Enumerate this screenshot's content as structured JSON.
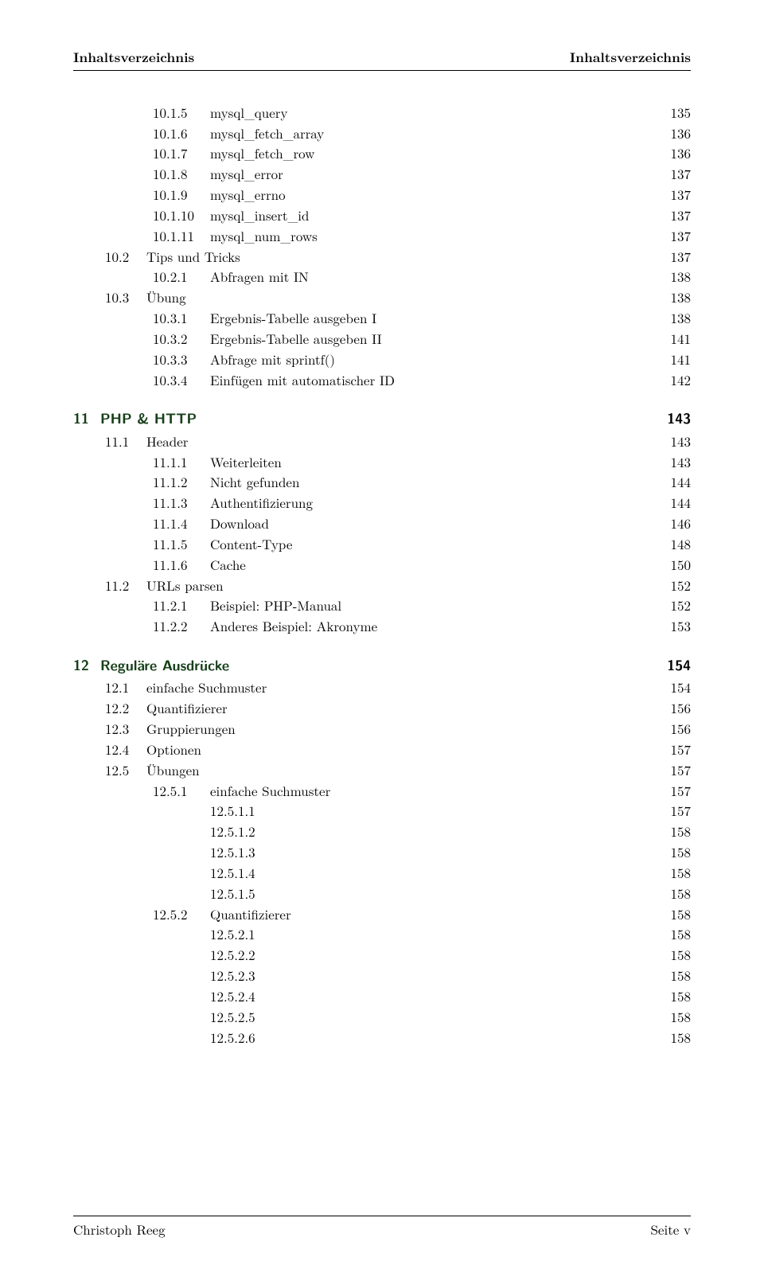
{
  "header": {
    "left": "Inhaltsverzeichnis",
    "right": "Inhaltsverzeichnis"
  },
  "footer": {
    "left": "Christoph Reeg",
    "right": "Seite v"
  },
  "colors": {
    "chapter_heading": "#17401a",
    "text": "#000000",
    "background": "#ffffff"
  },
  "typography": {
    "body_font": "Latin Modern Roman (Computer Modern)",
    "chapter_font": "Latin Modern Sans",
    "body_size_pt": 12,
    "chapter_size_pt": 13
  },
  "toc": [
    {
      "num": "10.1.5",
      "label": "mysql_query",
      "page": "135",
      "level": 3
    },
    {
      "num": "10.1.6",
      "label": "mysql_fetch_array",
      "page": "136",
      "level": 3
    },
    {
      "num": "10.1.7",
      "label": "mysql_fetch_row",
      "page": "136",
      "level": 3
    },
    {
      "num": "10.1.8",
      "label": "mysql_error",
      "page": "137",
      "level": 3
    },
    {
      "num": "10.1.9",
      "label": "mysql_errno",
      "page": "137",
      "level": 3
    },
    {
      "num": "10.1.10",
      "label": "mysql_insert_id",
      "page": "137",
      "level": 3
    },
    {
      "num": "10.1.11",
      "label": "mysql_num_rows",
      "page": "137",
      "level": 3
    },
    {
      "num": "10.2",
      "label": "Tips und Tricks",
      "page": "137",
      "level": 2
    },
    {
      "num": "10.2.1",
      "label": "Abfragen mit IN",
      "page": "138",
      "level": 3
    },
    {
      "num": "10.3",
      "label": "Übung",
      "page": "138",
      "level": 2
    },
    {
      "num": "10.3.1",
      "label": "Ergebnis-Tabelle ausgeben I",
      "page": "138",
      "level": 3
    },
    {
      "num": "10.3.2",
      "label": "Ergebnis-Tabelle ausgeben II",
      "page": "141",
      "level": 3
    },
    {
      "num": "10.3.3",
      "label": "Abfrage mit sprintf()",
      "page": "141",
      "level": 3
    },
    {
      "num": "10.3.4",
      "label": "Einfügen mit automatischer ID",
      "page": "142",
      "level": 3
    },
    {
      "num": "11",
      "label": "PHP & HTTP",
      "page": "143",
      "level": 1
    },
    {
      "num": "11.1",
      "label": "Header",
      "page": "143",
      "level": 2
    },
    {
      "num": "11.1.1",
      "label": "Weiterleiten",
      "page": "143",
      "level": 3
    },
    {
      "num": "11.1.2",
      "label": "Nicht gefunden",
      "page": "144",
      "level": 3
    },
    {
      "num": "11.1.3",
      "label": "Authentifizierung",
      "page": "144",
      "level": 3
    },
    {
      "num": "11.1.4",
      "label": "Download",
      "page": "146",
      "level": 3
    },
    {
      "num": "11.1.5",
      "label": "Content-Type",
      "page": "148",
      "level": 3
    },
    {
      "num": "11.1.6",
      "label": "Cache",
      "page": "150",
      "level": 3
    },
    {
      "num": "11.2",
      "label": "URLs parsen",
      "page": "152",
      "level": 2
    },
    {
      "num": "11.2.1",
      "label": "Beispiel: PHP-Manual",
      "page": "152",
      "level": 3
    },
    {
      "num": "11.2.2",
      "label": "Anderes Beispiel: Akronyme",
      "page": "153",
      "level": 3
    },
    {
      "num": "12",
      "label": "Reguläre Ausdrücke",
      "page": "154",
      "level": 1
    },
    {
      "num": "12.1",
      "label": "einfache Suchmuster",
      "page": "154",
      "level": 2
    },
    {
      "num": "12.2",
      "label": "Quantifizierer",
      "page": "156",
      "level": 2
    },
    {
      "num": "12.3",
      "label": "Gruppierungen",
      "page": "156",
      "level": 2
    },
    {
      "num": "12.4",
      "label": "Optionen",
      "page": "157",
      "level": 2
    },
    {
      "num": "12.5",
      "label": "Übungen",
      "page": "157",
      "level": 2
    },
    {
      "num": "12.5.1",
      "label": "einfache Suchmuster",
      "page": "157",
      "level": 3
    },
    {
      "num": "12.5.1.1",
      "label": "",
      "page": "157",
      "level": 4
    },
    {
      "num": "12.5.1.2",
      "label": "",
      "page": "158",
      "level": 4
    },
    {
      "num": "12.5.1.3",
      "label": "",
      "page": "158",
      "level": 4
    },
    {
      "num": "12.5.1.4",
      "label": "",
      "page": "158",
      "level": 4
    },
    {
      "num": "12.5.1.5",
      "label": "",
      "page": "158",
      "level": 4
    },
    {
      "num": "12.5.2",
      "label": "Quantifizierer",
      "page": "158",
      "level": 3
    },
    {
      "num": "12.5.2.1",
      "label": "",
      "page": "158",
      "level": 4
    },
    {
      "num": "12.5.2.2",
      "label": "",
      "page": "158",
      "level": 4
    },
    {
      "num": "12.5.2.3",
      "label": "",
      "page": "158",
      "level": 4
    },
    {
      "num": "12.5.2.4",
      "label": "",
      "page": "158",
      "level": 4
    },
    {
      "num": "12.5.2.5",
      "label": "",
      "page": "158",
      "level": 4
    },
    {
      "num": "12.5.2.6",
      "label": "",
      "page": "158",
      "level": 4
    }
  ]
}
